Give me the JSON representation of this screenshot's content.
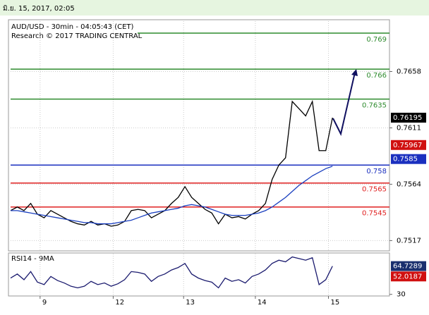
{
  "header": {
    "date": "มิ.ย. 15, 2017, 02:05"
  },
  "chart_data": [
    {
      "type": "line",
      "title": "AUD/USD - 30min - 04:05:43 (CET)",
      "subtitle": "Research © 2017 TRADING CENTRAL",
      "x": [
        0,
        1,
        2,
        3,
        4,
        5,
        6,
        7,
        8,
        9,
        10,
        11,
        12,
        13,
        14,
        15,
        16,
        17,
        18,
        19,
        20,
        21,
        22,
        23,
        24,
        25,
        26,
        27,
        28,
        29,
        30,
        31,
        32,
        33,
        34,
        35,
        36,
        37,
        38,
        39,
        40,
        41,
        42,
        43,
        44,
        45,
        46,
        47,
        48
      ],
      "series": [
        {
          "name": "AUD/USD",
          "color": "#000000",
          "values": [
            0.7542,
            0.7545,
            0.7542,
            0.7548,
            0.7539,
            0.7536,
            0.7542,
            0.7539,
            0.7536,
            0.7533,
            0.7531,
            0.753,
            0.7533,
            0.753,
            0.7531,
            0.7529,
            0.753,
            0.7533,
            0.7542,
            0.7543,
            0.7542,
            0.7536,
            0.7539,
            0.7542,
            0.7548,
            0.7553,
            0.7562,
            0.7553,
            0.7548,
            0.7543,
            0.754,
            0.7531,
            0.7539,
            0.7536,
            0.7537,
            0.7535,
            0.7539,
            0.7542,
            0.7548,
            0.7568,
            0.758,
            0.7586,
            0.7633,
            0.7627,
            0.7621,
            0.7633,
            0.7592,
            0.7592,
            0.76195
          ]
        },
        {
          "name": "MA",
          "color": "#1a3fbf",
          "values": [
            0.7542,
            0.7542,
            0.7541,
            0.754,
            0.7539,
            0.7538,
            0.7537,
            0.7536,
            0.7535,
            0.7534,
            0.7533,
            0.7532,
            0.7532,
            0.7531,
            0.7531,
            0.7531,
            0.7532,
            0.7533,
            0.7534,
            0.7536,
            0.7538,
            0.754,
            0.7541,
            0.7542,
            0.7543,
            0.7544,
            0.7546,
            0.7547,
            0.7546,
            0.7545,
            0.7543,
            0.7541,
            0.7539,
            0.7538,
            0.7538,
            0.7538,
            0.7539,
            0.754,
            0.7542,
            0.7545,
            0.7549,
            0.7553,
            0.7558,
            0.7563,
            0.7567,
            0.7571,
            0.7574,
            0.7577,
            0.7579
          ]
        }
      ],
      "xlim": [
        0,
        56.5
      ],
      "xticks": [
        {
          "value": 4.4,
          "label": "9"
        },
        {
          "value": 15.3,
          "label": "12"
        },
        {
          "value": 25.8,
          "label": "13"
        },
        {
          "value": 36.5,
          "label": "14"
        },
        {
          "value": 47.4,
          "label": "15"
        }
      ],
      "ylim": [
        0.7509,
        0.77
      ],
      "yticks": [
        0.7517,
        0.7564,
        0.7611,
        0.7658
      ],
      "grid": true,
      "levels": [
        {
          "value": 0.769,
          "color": "#2e8b2e"
        },
        {
          "value": 0.766,
          "color": "#2e8b2e"
        },
        {
          "value": 0.7635,
          "color": "#2e8b2e"
        },
        {
          "value": 0.758,
          "color": "#1a2fbf"
        },
        {
          "value": 0.7565,
          "color": "#e02020"
        },
        {
          "value": 0.7545,
          "color": "#e02020"
        }
      ],
      "price_tags": [
        {
          "value": 0.76195,
          "color": "#000000"
        },
        {
          "value": 0.75967,
          "color": "#d01010"
        },
        {
          "value": 0.7585,
          "color": "#1a2fbf"
        }
      ]
    },
    {
      "type": "line",
      "title": "RSI14 - 9MA",
      "series": [
        {
          "name": "RSI14",
          "color": "#1a1a6e",
          "values": [
            50,
            55,
            48,
            58,
            45,
            42,
            52,
            47,
            44,
            40,
            38,
            40,
            46,
            42,
            44,
            40,
            43,
            48,
            58,
            57,
            55,
            46,
            52,
            55,
            60,
            63,
            68,
            55,
            50,
            47,
            45,
            38,
            50,
            46,
            48,
            44,
            52,
            55,
            60,
            68,
            72,
            70,
            76,
            74,
            72,
            75,
            42,
            48,
            64.7289
          ]
        }
      ],
      "ylim": [
        28,
        80
      ],
      "yticks": [
        30
      ],
      "tags": [
        {
          "value": 64.7289,
          "color": "#1a2f6e"
        },
        {
          "value": 52.0187,
          "color": "#d01010"
        }
      ]
    }
  ]
}
